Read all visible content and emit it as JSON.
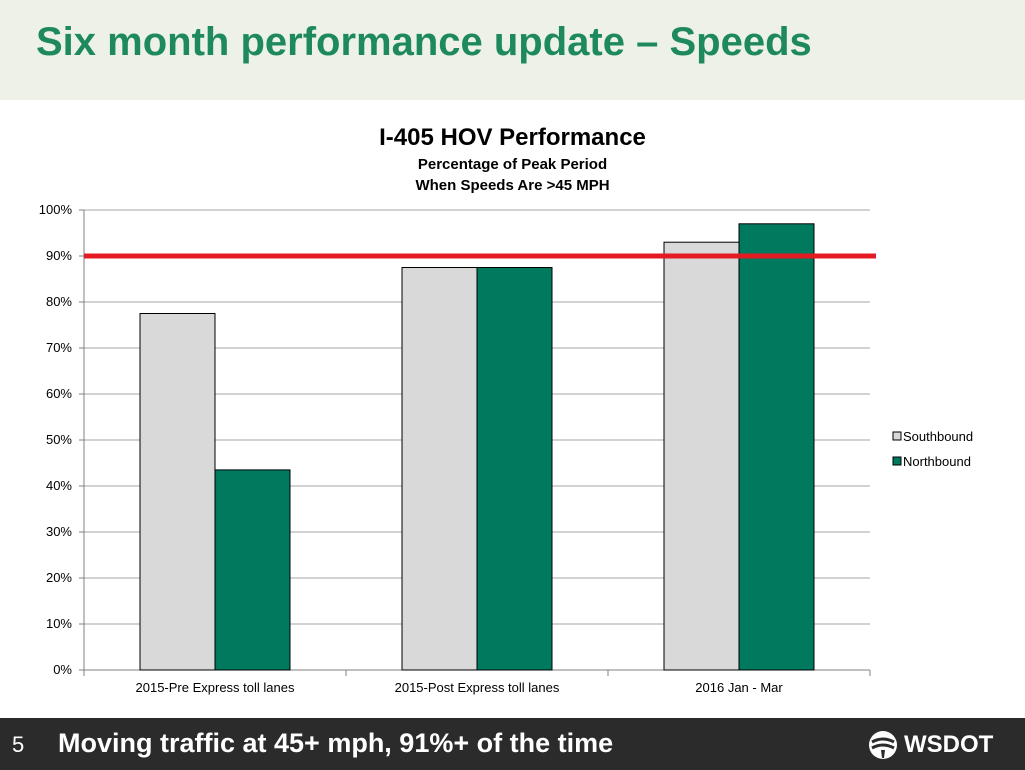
{
  "slide": {
    "title": "Six month performance update – Speeds",
    "page_number": "5",
    "footer_text": "Moving traffic at 45+ mph, 91%+ of the time",
    "logo_text": "WSDOT"
  },
  "colors": {
    "header_bg": "#eef2e6",
    "title_green": "#1e8a5c",
    "southbound": "#d9d9d9",
    "northbound": "#007a5e",
    "target_line": "#e31b23",
    "footer_bg": "#2b2b2b"
  },
  "chart_data": {
    "type": "bar",
    "title": "I-405 HOV Performance",
    "subtitle_lines": [
      "Percentage of Peak Period",
      "When Speeds Are >45 MPH"
    ],
    "categories": [
      "2015-Pre Express toll lanes",
      "2015-Post Express toll lanes",
      "2016 Jan - Mar"
    ],
    "series": [
      {
        "name": "Southbound",
        "values": [
          77.5,
          87.5,
          93
        ]
      },
      {
        "name": "Northbound",
        "values": [
          43.5,
          87.5,
          97
        ]
      }
    ],
    "yticks": [
      "0%",
      "10%",
      "20%",
      "30%",
      "40%",
      "50%",
      "60%",
      "70%",
      "80%",
      "90%",
      "100%"
    ],
    "ylim": [
      0,
      100
    ],
    "target": 90,
    "grid": true,
    "legend_position": "right"
  }
}
